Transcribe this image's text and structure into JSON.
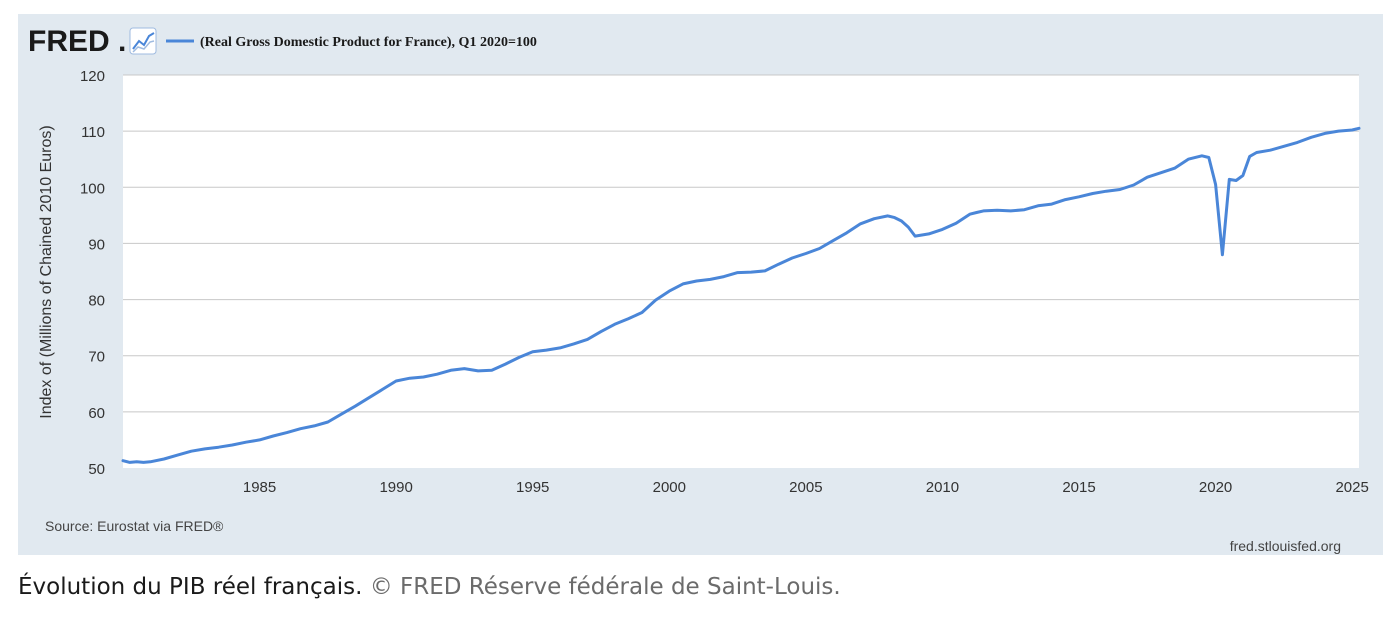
{
  "logo": {
    "text": "FRED",
    "dot": "."
  },
  "legend": {
    "label": "(Real Gross Domestic Product for France), Q1 2020=100",
    "color": "#4a86d8"
  },
  "source": "Source: Eurostat via FRED®",
  "site": "fred.stlouisfed.org",
  "caption": {
    "main": "Évolution du PIB réel français.",
    "credit": "© FRED Réserve fédérale de Saint-Louis."
  },
  "colors": {
    "panel": "#e1e9f0",
    "plot": "#ffffff",
    "line": "#4a86d8",
    "grid": "#c8c8c8"
  },
  "chart_data": {
    "type": "line",
    "ylabel": "Index of (Millions of Chained 2010 Euros)",
    "xlabel": "",
    "ylim": [
      50,
      120
    ],
    "xlim": [
      1980.0,
      2025.25
    ],
    "yticks": [
      50,
      60,
      70,
      80,
      90,
      100,
      110,
      120
    ],
    "xticks": [
      1985,
      1990,
      1995,
      2000,
      2005,
      2010,
      2015,
      2020,
      2025
    ],
    "grid": true,
    "legend_position": "top-left",
    "series": [
      {
        "name": "(Real Gross Domestic Product for France), Q1 2020=100",
        "x": [
          1980.0,
          1980.25,
          1980.5,
          1980.75,
          1981.0,
          1981.5,
          1982.0,
          1982.5,
          1983.0,
          1983.5,
          1984.0,
          1984.5,
          1985.0,
          1985.5,
          1986.0,
          1986.5,
          1987.0,
          1987.5,
          1988.0,
          1988.5,
          1989.0,
          1989.5,
          1990.0,
          1990.5,
          1991.0,
          1991.5,
          1992.0,
          1992.5,
          1993.0,
          1993.5,
          1994.0,
          1994.5,
          1995.0,
          1995.5,
          1996.0,
          1996.5,
          1997.0,
          1997.5,
          1998.0,
          1998.5,
          1999.0,
          1999.5,
          2000.0,
          2000.5,
          2001.0,
          2001.5,
          2002.0,
          2002.5,
          2003.0,
          2003.5,
          2004.0,
          2004.5,
          2005.0,
          2005.5,
          2006.0,
          2006.5,
          2007.0,
          2007.5,
          2008.0,
          2008.25,
          2008.5,
          2008.75,
          2009.0,
          2009.25,
          2009.5,
          2010.0,
          2010.5,
          2011.0,
          2011.25,
          2011.5,
          2012.0,
          2012.5,
          2013.0,
          2013.5,
          2014.0,
          2014.5,
          2015.0,
          2015.5,
          2016.0,
          2016.5,
          2017.0,
          2017.5,
          2018.0,
          2018.5,
          2019.0,
          2019.5,
          2019.75,
          2020.0,
          2020.25,
          2020.5,
          2020.75,
          2021.0,
          2021.25,
          2021.5,
          2022.0,
          2022.5,
          2023.0,
          2023.5,
          2024.0,
          2024.5,
          2025.0,
          2025.25
        ],
        "values": [
          51.3,
          51.0,
          51.1,
          51.0,
          51.1,
          51.6,
          52.3,
          53.0,
          53.4,
          53.7,
          54.1,
          54.6,
          55.0,
          55.7,
          56.3,
          57.0,
          57.5,
          58.2,
          59.6,
          61.0,
          62.5,
          64.0,
          65.5,
          66.0,
          66.2,
          66.7,
          67.4,
          67.7,
          67.3,
          67.4,
          68.5,
          69.7,
          70.7,
          71.0,
          71.4,
          72.1,
          72.9,
          74.3,
          75.6,
          76.6,
          77.7,
          79.9,
          81.5,
          82.8,
          83.3,
          83.6,
          84.1,
          84.8,
          84.9,
          85.1,
          86.3,
          87.4,
          88.2,
          89.1,
          90.5,
          91.9,
          93.5,
          94.4,
          94.9,
          94.6,
          94.0,
          92.9,
          91.3,
          91.5,
          91.7,
          92.5,
          93.6,
          95.2,
          95.5,
          95.8,
          95.9,
          95.8,
          96.0,
          96.7,
          97.0,
          97.8,
          98.3,
          98.9,
          99.3,
          99.6,
          100.4,
          101.8,
          102.6,
          103.4,
          105.0,
          105.6,
          105.3,
          100.5,
          88.0,
          101.4,
          101.2,
          102.1,
          105.5,
          106.2,
          106.6,
          107.3,
          108.0,
          108.9,
          109.6,
          110.0,
          110.2,
          110.5
        ]
      }
    ]
  }
}
